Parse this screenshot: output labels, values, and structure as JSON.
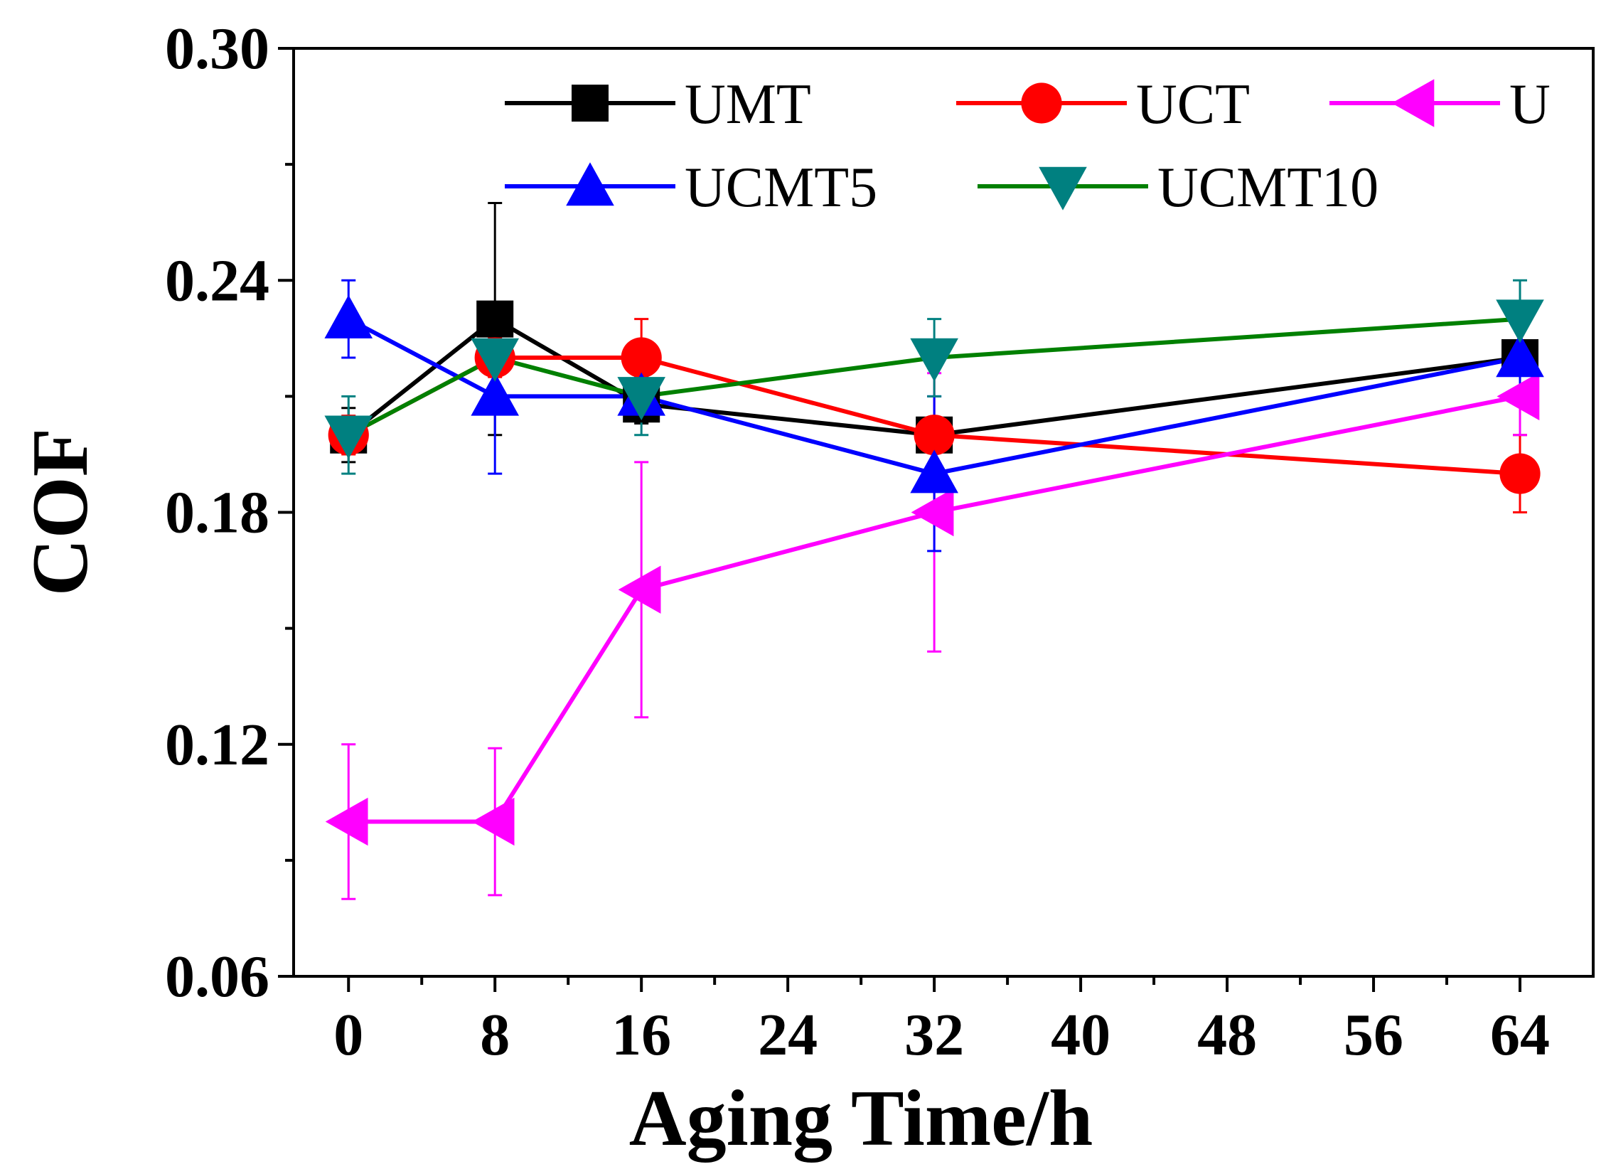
{
  "chart_data": {
    "type": "line",
    "title": "",
    "xlabel": "Aging Time/h",
    "ylabel": "COF",
    "xlim": [
      -3,
      68
    ],
    "ylim": [
      0.06,
      0.3
    ],
    "xticks": [
      0,
      8,
      16,
      24,
      32,
      40,
      48,
      56,
      64
    ],
    "xtick_labels": [
      "0",
      "8",
      "16",
      "24",
      "32",
      "40",
      "48",
      "56",
      "64"
    ],
    "yticks": [
      0.06,
      0.12,
      0.18,
      0.24,
      0.3
    ],
    "ytick_labels": [
      "0.06",
      "0.12",
      "0.18",
      "0.24",
      "0.30"
    ],
    "legend_position": "top",
    "x": [
      0,
      8,
      16,
      32,
      64
    ],
    "series": [
      {
        "name": "UMT",
        "color": "#000000",
        "marker": "square",
        "values": [
          0.2,
          0.23,
          0.208,
          0.2,
          0.22
        ],
        "errors": [
          0.007,
          0.03,
          0.005,
          0.003,
          0.003
        ]
      },
      {
        "name": "UCT",
        "color": "#ff0000",
        "marker": "circle",
        "values": [
          0.2,
          0.22,
          0.22,
          0.2,
          0.19
        ],
        "errors": [
          0.005,
          0.005,
          0.01,
          0.02,
          0.01
        ]
      },
      {
        "name": "U",
        "color": "#ff00ff",
        "marker": "triangle-left",
        "values": [
          0.1,
          0.1,
          0.16,
          0.18,
          0.21
        ],
        "errors": [
          0.02,
          0.019,
          0.033,
          0.036,
          0.01
        ]
      },
      {
        "name": "UCMT5",
        "color": "#0000ff",
        "marker": "triangle-up",
        "values": [
          0.23,
          0.21,
          0.21,
          0.19,
          0.22
        ],
        "errors": [
          0.01,
          0.02,
          0.005,
          0.02,
          0.01
        ]
      },
      {
        "name": "UCMT10",
        "color": "#008080",
        "line_color": "#008000",
        "marker": "triangle-down",
        "values": [
          0.2,
          0.22,
          0.21,
          0.22,
          0.23
        ],
        "errors": [
          0.01,
          0.01,
          0.01,
          0.01,
          0.01
        ]
      }
    ]
  }
}
